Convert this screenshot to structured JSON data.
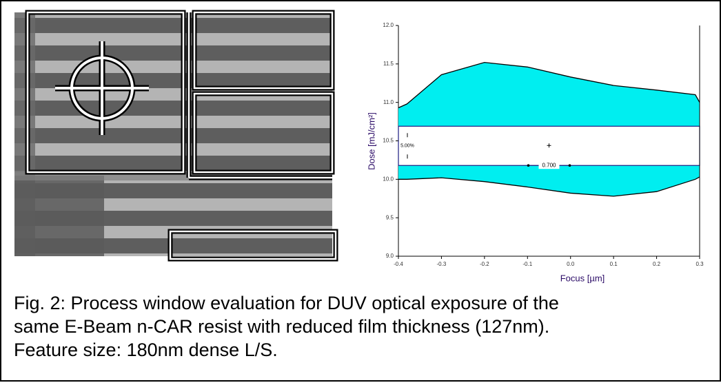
{
  "chart_data": {
    "type": "area",
    "x": [
      -0.4,
      -0.38,
      -0.3,
      -0.2,
      -0.1,
      0.0,
      0.1,
      0.2,
      0.29,
      0.3
    ],
    "series": [
      {
        "color": "#00eef0",
        "values": [
          10.93,
          10.98,
          11.36,
          11.52,
          11.46,
          11.33,
          11.22,
          11.16,
          11.1,
          11.0
        ]
      },
      {
        "color": "#00eef0",
        "values": [
          10.0,
          10.0,
          10.02,
          9.97,
          9.9,
          9.82,
          9.78,
          9.84,
          10.0,
          10.03
        ]
      }
    ],
    "window": {
      "xlim": [
        -0.4,
        0.3
      ],
      "ylim": [
        10.18,
        10.69
      ],
      "center": [
        -0.05,
        10.44
      ],
      "width_label": "0.700",
      "latitude_label": "5.00%"
    },
    "xlabel": "Focus [µm]",
    "ylabel": "Dose [mJ/cm²]",
    "xlim": [
      -0.4,
      0.3
    ],
    "ylim": [
      9.0,
      12.0
    ],
    "xticks": [
      -0.4,
      -0.3,
      -0.2,
      -0.1,
      {
        "value": 0,
        "label": "0.0"
      },
      0.1,
      0.2,
      0.3
    ],
    "yticks": [
      {
        "value": 9,
        "label": "9.0"
      },
      9.5,
      {
        "value": 10,
        "label": "10.0"
      },
      10.5,
      {
        "value": 11,
        "label": "11.0"
      },
      11.5,
      {
        "value": 12,
        "label": "12.0"
      }
    ]
  },
  "caption": [
    "Fig. 2: Process window evaluation for DUV optical exposure of the",
    "same E-Beam n-CAR resist with reduced film thickness (127nm).",
    "Feature size: 180nm dense L/S."
  ]
}
